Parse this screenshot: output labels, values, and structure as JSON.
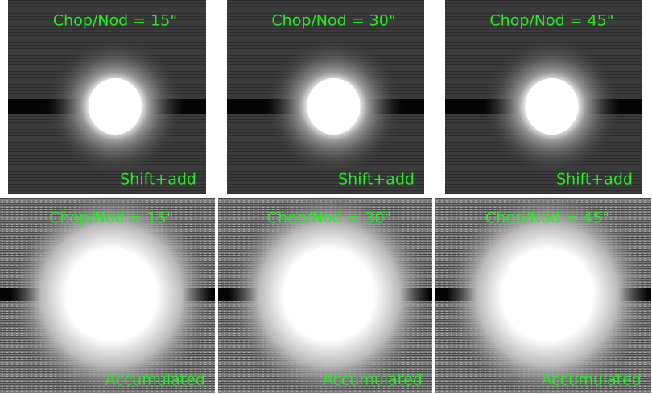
{
  "panels": [
    {
      "title": "Chop/Nod = 15\"",
      "label": "Shift+add"
    },
    {
      "title": "Chop/Nod = 30\"",
      "label": "Shift+add"
    },
    {
      "title": "Chop/Nod = 45\"",
      "label": "Shift+add"
    },
    {
      "title": "Chop/Nod = 15\"",
      "label": "Accumulated"
    },
    {
      "title": "Chop/Nod = 30\"",
      "label": "Accumulated"
    },
    {
      "title": "Chop/Nod = 45\"",
      "label": "Accumulated"
    }
  ]
}
